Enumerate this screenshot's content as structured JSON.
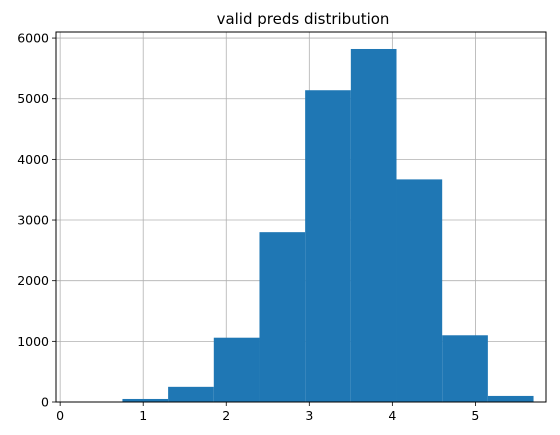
{
  "chart_data": {
    "type": "bar",
    "title": "valid preds distribution",
    "xlabel": "",
    "ylabel": "",
    "xlim": [
      -0.05,
      5.85
    ],
    "ylim": [
      0,
      6100
    ],
    "xticks": [
      0,
      1,
      2,
      3,
      4,
      5
    ],
    "yticks": [
      0,
      1000,
      2000,
      3000,
      4000,
      5000,
      6000
    ],
    "grid": true,
    "bar_color": "#1f77b4",
    "bins": [
      {
        "x0": 0.2,
        "x1": 0.75,
        "value": 2
      },
      {
        "x0": 0.75,
        "x1": 1.3,
        "value": 50
      },
      {
        "x0": 1.3,
        "x1": 1.85,
        "value": 250
      },
      {
        "x0": 1.85,
        "x1": 2.4,
        "value": 1060
      },
      {
        "x0": 2.4,
        "x1": 2.95,
        "value": 2800
      },
      {
        "x0": 2.95,
        "x1": 3.5,
        "value": 5140
      },
      {
        "x0": 3.5,
        "x1": 4.05,
        "value": 5820
      },
      {
        "x0": 4.05,
        "x1": 4.6,
        "value": 3670
      },
      {
        "x0": 4.6,
        "x1": 5.15,
        "value": 1100
      },
      {
        "x0": 5.15,
        "x1": 5.7,
        "value": 100
      }
    ]
  }
}
